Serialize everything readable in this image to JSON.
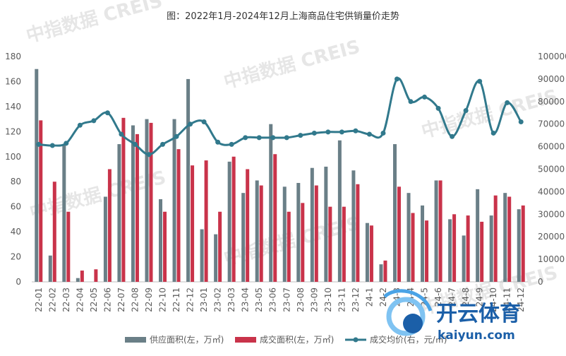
{
  "title": "图：2022年1月-2024年12月上海商品住宅供销量价走势",
  "watermarks": [
    "中指数据  CREIS",
    "中指数据  CREIS",
    "中指数据  CREIS",
    "中指数据  CREIS",
    "中指数据  CREIS",
    "中指数据  CREIS"
  ],
  "logo": {
    "text": "开云体育",
    "url": "kaiyun.com"
  },
  "chart_data": {
    "type": "bar",
    "categories": [
      "22-01",
      "22-02",
      "22-03",
      "22-04",
      "22-05",
      "22-06",
      "22-07",
      "22-08",
      "22-09",
      "22-10",
      "22-11",
      "22-12",
      "23-01",
      "23-02",
      "23-03",
      "23-04",
      "23-05",
      "23-06",
      "23-07",
      "23-08",
      "23-09",
      "23-10",
      "23-11",
      "23-12",
      "24-1",
      "24-2",
      "24-3",
      "24-4",
      "24-5",
      "24-6",
      "24-7",
      "24-8",
      "24-9",
      "24-10",
      "24-11",
      "24-12"
    ],
    "x_tick_labels": [
      "22-01",
      "22-02",
      "22-03",
      "22-04",
      "22-05",
      "22-06",
      "22-07",
      "22-08",
      "22-09",
      "22-10",
      "22-11",
      "22-12",
      "23-01",
      "23-02",
      "23-03",
      "23-04",
      "23-05",
      "23-06",
      "23-07",
      "23-08",
      "23-09",
      "23-10",
      "23-11",
      "23-12",
      "24-1",
      "24-2",
      "24-3",
      "24-4",
      "24-5",
      "24-6",
      "24-7",
      "24-8",
      "24-9",
      "24-10",
      "24-11",
      "24-12"
    ],
    "series": [
      {
        "name": "供应面积(左，万㎡)",
        "type": "bar",
        "axis": "left",
        "color": "#6a7f87",
        "values": [
          170,
          21,
          110,
          3,
          0,
          68,
          110,
          125,
          130,
          66,
          130,
          162,
          42,
          38,
          96,
          71,
          81,
          126,
          76,
          79,
          91,
          92,
          113,
          89,
          47,
          14,
          110,
          71,
          61,
          81,
          50,
          37,
          74,
          53,
          71,
          58
        ]
      },
      {
        "name": "成交面积(左，万㎡)",
        "type": "bar",
        "axis": "right_bar",
        "color": "#c9334a",
        "values": [
          129,
          80,
          56,
          9,
          10,
          90,
          131,
          118,
          127,
          56,
          106,
          93,
          97,
          56,
          100,
          90,
          77,
          102,
          56,
          63,
          77,
          60,
          60,
          78,
          45,
          17,
          76,
          55,
          49,
          81,
          54,
          53,
          48,
          69,
          68,
          61
        ]
      },
      {
        "name": "成交均价(右，元/㎡)",
        "type": "line",
        "axis": "right",
        "color": "#31798c",
        "values": [
          61000,
          60500,
          61500,
          69500,
          71500,
          75000,
          65500,
          61000,
          56500,
          61000,
          64500,
          70000,
          71000,
          62000,
          61000,
          64000,
          64000,
          64000,
          64000,
          65000,
          66000,
          66500,
          66500,
          67000,
          65500,
          66000,
          90000,
          80000,
          82000,
          77000,
          64500,
          76000,
          89000,
          66000,
          79500,
          71000
        ]
      }
    ],
    "y_left": {
      "min": 0,
      "max": 180,
      "ticks": [
        0,
        20,
        40,
        60,
        80,
        100,
        120,
        140,
        160,
        180
      ]
    },
    "y_right": {
      "min": 0,
      "max": 100000,
      "ticks": [
        0,
        10000,
        20000,
        30000,
        40000,
        50000,
        60000,
        70000,
        80000,
        90000,
        100000
      ]
    },
    "grid": false,
    "legend_position": "bottom"
  }
}
